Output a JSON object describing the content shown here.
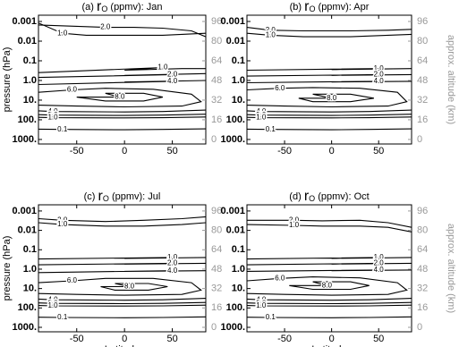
{
  "chart_data": [
    {
      "type": "contour",
      "title_prefix": "(a)",
      "title_symbol": "r",
      "title_subscript": "O",
      "title_units": "(ppmv):",
      "title_month": "Jan",
      "ylabel": "pressure (hPa)",
      "xlim": [
        -90,
        85
      ],
      "xticks": [
        -50,
        0,
        50
      ],
      "ylim": [
        1700,
        0.00048
      ],
      "log_y": true,
      "yticks": [
        0.001,
        0.01,
        0.1,
        {
          "value": 1,
          "label": "1.0"
        },
        {
          "value": 10,
          "label": "10."
        },
        {
          "value": 100,
          "label": "100."
        },
        {
          "value": 1000,
          "label": "1000."
        }
      ],
      "y2lim": [
        -3.7,
        101.1
      ],
      "y2ticks": [
        0,
        16,
        32,
        48,
        64,
        80,
        96
      ],
      "y2color": "#999999",
      "color": "#000000",
      "contours": [
        {
          "label": "1.0",
          "x": [
            -90,
            -65,
            -40,
            0,
            40,
            85
          ],
          "y": [
            0.0012,
            0.004,
            0.005,
            0.005,
            0.005,
            0.004
          ]
        },
        {
          "label": "2.0",
          "x": [
            -90,
            -20,
            10,
            40,
            70,
            85
          ],
          "y": [
            0.0015,
            0.002,
            0.002,
            0.0022,
            0.003,
            0.006
          ]
        },
        {
          "label": "1.0",
          "x": [
            -90,
            40,
            0,
            60,
            85
          ],
          "y": [
            0.4,
            0.22,
            0.3,
            0.25,
            0.25
          ]
        },
        {
          "label": "2.0",
          "x": [
            -90,
            50,
            0,
            85
          ],
          "y": [
            0.7,
            0.5,
            0.55,
            0.45
          ]
        },
        {
          "label": "4.0",
          "x": [
            -90,
            50,
            0,
            85
          ],
          "y": [
            1.6,
            1.1,
            1.2,
            1.0
          ]
        },
        {
          "label": "6.0",
          "x": [
            -90,
            -55,
            -20,
            30,
            70,
            80,
            60,
            0,
            -50,
            -90
          ],
          "y": [
            4,
            3,
            2.5,
            2.8,
            5,
            12,
            20,
            22,
            20,
            18
          ]
        },
        {
          "label": "8.0",
          "x": [
            -50,
            -5,
            -20,
            20,
            40,
            20,
            -20,
            -50
          ],
          "y": [
            7,
            7,
            4.5,
            4.5,
            7,
            11,
            11,
            7
          ]
        },
        {
          "label": "4.0",
          "x": [
            -90,
            -75,
            0,
            40,
            85
          ],
          "y": [
            35,
            38,
            40,
            38,
            32
          ]
        },
        {
          "label": "2.0",
          "x": [
            -90,
            -75,
            0,
            40,
            85
          ],
          "y": [
            55,
            58,
            60,
            58,
            52
          ]
        },
        {
          "label": "1.0",
          "x": [
            -90,
            -75,
            0,
            40,
            85
          ],
          "y": [
            75,
            78,
            80,
            78,
            72
          ]
        },
        {
          "label": "0.1",
          "x": [
            -90,
            -65,
            0,
            40,
            85
          ],
          "y": [
            300,
            310,
            320,
            310,
            290
          ]
        }
      ]
    },
    {
      "type": "contour",
      "title_prefix": "(b)",
      "title_symbol": "r",
      "title_subscript": "O",
      "title_units": "(ppmv):",
      "title_month": "Apr",
      "y2label": "approx. altitude (km)",
      "xlim": [
        -90,
        85
      ],
      "xticks": [
        -50,
        0,
        50
      ],
      "ylim": [
        1700,
        0.00048
      ],
      "log_y": true,
      "yticks": [
        0.001,
        0.01,
        0.1,
        {
          "value": 1,
          "label": "1.0"
        },
        {
          "value": 10,
          "label": "10."
        },
        {
          "value": 100,
          "label": "100."
        },
        {
          "value": 1000,
          "label": "1000."
        }
      ],
      "y2lim": [
        -3.7,
        101.1
      ],
      "y2ticks": [
        0,
        16,
        32,
        48,
        64,
        80,
        96
      ],
      "y2color": "#999999",
      "color": "#000000",
      "contours": [
        {
          "label": "2.0",
          "x": [
            -90,
            -65,
            -30,
            20,
            60,
            85
          ],
          "y": [
            0.002,
            0.0028,
            0.003,
            0.003,
            0.0028,
            0.0025
          ]
        },
        {
          "label": "1.0",
          "x": [
            -90,
            -65,
            -30,
            20,
            60,
            85
          ],
          "y": [
            0.004,
            0.005,
            0.006,
            0.006,
            0.005,
            0.0045
          ]
        },
        {
          "label": "1.0",
          "x": [
            -90,
            50,
            0,
            85
          ],
          "y": [
            0.3,
            0.25,
            0.28,
            0.25
          ]
        },
        {
          "label": "2.0",
          "x": [
            -90,
            50,
            0,
            85
          ],
          "y": [
            0.6,
            0.5,
            0.55,
            0.5
          ]
        },
        {
          "label": "4.0",
          "x": [
            -90,
            50,
            0,
            85
          ],
          "y": [
            1.3,
            1.1,
            1.2,
            1.1
          ]
        },
        {
          "label": "6.0",
          "x": [
            -90,
            -55,
            -20,
            30,
            70,
            80,
            60,
            0,
            -50,
            -90
          ],
          "y": [
            3,
            2.5,
            2.3,
            2.5,
            4,
            12,
            20,
            22,
            20,
            18
          ]
        },
        {
          "label": "8.0",
          "x": [
            -35,
            0,
            -20,
            20,
            45,
            20,
            -20,
            -35
          ],
          "y": [
            8,
            8,
            5,
            5,
            8,
            12,
            12,
            8
          ]
        },
        {
          "label": "4.0",
          "x": [
            -90,
            -75,
            0,
            40,
            85
          ],
          "y": [
            35,
            38,
            40,
            38,
            32
          ]
        },
        {
          "label": "2.0",
          "x": [
            -90,
            -75,
            0,
            40,
            85
          ],
          "y": [
            55,
            58,
            60,
            58,
            52
          ]
        },
        {
          "label": "1.0",
          "x": [
            -90,
            -75,
            0,
            40,
            85
          ],
          "y": [
            75,
            78,
            80,
            78,
            72
          ]
        },
        {
          "label": "0.1",
          "x": [
            -90,
            -65,
            0,
            40,
            85
          ],
          "y": [
            300,
            310,
            320,
            310,
            290
          ]
        }
      ]
    },
    {
      "type": "contour",
      "title_prefix": "(c)",
      "title_symbol": "r",
      "title_subscript": "O",
      "title_units": "(ppmv):",
      "title_month": "Jul",
      "ylabel": "pressure (hPa)",
      "xlabel": "Latitude",
      "xlim": [
        -90,
        85
      ],
      "xticks": [
        -50,
        0,
        50
      ],
      "ylim": [
        1700,
        0.00048
      ],
      "log_y": true,
      "yticks": [
        0.001,
        0.01,
        0.1,
        {
          "value": 1,
          "label": "1.0"
        },
        {
          "value": 10,
          "label": "10."
        },
        {
          "value": 100,
          "label": "100."
        },
        {
          "value": 1000,
          "label": "1000."
        }
      ],
      "y2lim": [
        -3.7,
        101.1
      ],
      "y2ticks": [
        0,
        16,
        32,
        48,
        64,
        80,
        96
      ],
      "y2color": "#999999",
      "color": "#000000",
      "contours": [
        {
          "label": "2.0",
          "x": [
            -90,
            -65,
            -20,
            20,
            60,
            85
          ],
          "y": [
            0.0025,
            0.003,
            0.0035,
            0.003,
            0.0025,
            0.002
          ]
        },
        {
          "label": "1.0",
          "x": [
            -90,
            -65,
            -20,
            20,
            60,
            85
          ],
          "y": [
            0.004,
            0.005,
            0.006,
            0.006,
            0.005,
            0.004
          ]
        },
        {
          "label": "1.0",
          "x": [
            -90,
            50,
            0,
            85
          ],
          "y": [
            0.3,
            0.25,
            0.28,
            0.25
          ]
        },
        {
          "label": "2.0",
          "x": [
            -90,
            50,
            0,
            85
          ],
          "y": [
            0.6,
            0.5,
            0.55,
            0.5
          ]
        },
        {
          "label": "4.0",
          "x": [
            -90,
            50,
            0,
            85
          ],
          "y": [
            1.5,
            1.2,
            1.3,
            1.2
          ]
        },
        {
          "label": "6.0",
          "x": [
            -90,
            -55,
            -20,
            30,
            70,
            80,
            60,
            0,
            -50,
            -90
          ],
          "y": [
            5,
            4,
            3,
            3,
            5,
            12,
            20,
            22,
            20,
            18
          ]
        },
        {
          "label": "8.0",
          "x": [
            -25,
            5,
            -10,
            25,
            45,
            25,
            -10,
            -25
          ],
          "y": [
            8,
            8,
            5.5,
            5.5,
            8,
            12,
            12,
            8
          ]
        },
        {
          "label": "4.0",
          "x": [
            -90,
            -75,
            0,
            40,
            85
          ],
          "y": [
            35,
            38,
            40,
            38,
            32
          ]
        },
        {
          "label": "2.0",
          "x": [
            -90,
            -75,
            0,
            40,
            85
          ],
          "y": [
            55,
            58,
            60,
            58,
            52
          ]
        },
        {
          "label": "1.0",
          "x": [
            -90,
            -75,
            0,
            40,
            85
          ],
          "y": [
            75,
            78,
            80,
            78,
            72
          ]
        },
        {
          "label": "0.1",
          "x": [
            -90,
            -65,
            0,
            40,
            85
          ],
          "y": [
            300,
            310,
            320,
            310,
            290
          ]
        }
      ]
    },
    {
      "type": "contour",
      "title_prefix": "(d)",
      "title_symbol": "r",
      "title_subscript": "O",
      "title_units": "(ppmv):",
      "title_month": "Oct",
      "y2label": "approx. altitude (km)",
      "xlabel": "Latitude",
      "xlim": [
        -90,
        85
      ],
      "xticks": [
        -50,
        0,
        50
      ],
      "ylim": [
        1700,
        0.00048
      ],
      "log_y": true,
      "yticks": [
        0.001,
        0.01,
        0.1,
        {
          "value": 1,
          "label": "1.0"
        },
        {
          "value": 10,
          "label": "10."
        },
        {
          "value": 100,
          "label": "100."
        },
        {
          "value": 1000,
          "label": "1000."
        }
      ],
      "y2lim": [
        -3.7,
        101.1
      ],
      "y2ticks": [
        0,
        16,
        32,
        48,
        64,
        80,
        96
      ],
      "y2color": "#999999",
      "color": "#000000",
      "contours": [
        {
          "label": "2.0",
          "x": [
            -90,
            -40,
            -10,
            30,
            60,
            85
          ],
          "y": [
            0.003,
            0.003,
            0.0032,
            0.003,
            0.004,
            0.007
          ]
        },
        {
          "label": "1.0",
          "x": [
            -90,
            -40,
            -10,
            30,
            60,
            85
          ],
          "y": [
            0.005,
            0.0055,
            0.006,
            0.006,
            0.007,
            0.012
          ]
        },
        {
          "label": "1.0",
          "x": [
            -90,
            50,
            0,
            85
          ],
          "y": [
            0.3,
            0.25,
            0.28,
            0.25
          ]
        },
        {
          "label": "2.0",
          "x": [
            -90,
            50,
            0,
            85
          ],
          "y": [
            0.6,
            0.5,
            0.55,
            0.5
          ]
        },
        {
          "label": "4.0",
          "x": [
            -90,
            50,
            0,
            85
          ],
          "y": [
            1.3,
            1.1,
            1.2,
            1.1
          ]
        },
        {
          "label": "6.0",
          "x": [
            -90,
            -55,
            -20,
            30,
            70,
            80,
            60,
            0,
            -50,
            -90
          ],
          "y": [
            4,
            3,
            2.5,
            2.8,
            5,
            12,
            20,
            22,
            20,
            18
          ]
        },
        {
          "label": "8.0",
          "x": [
            -45,
            -5,
            -20,
            20,
            40,
            20,
            -20,
            -45
          ],
          "y": [
            7,
            7,
            4.5,
            4.5,
            7,
            11,
            11,
            7
          ]
        },
        {
          "label": "4.0",
          "x": [
            -90,
            -75,
            0,
            40,
            85
          ],
          "y": [
            35,
            38,
            40,
            38,
            32
          ]
        },
        {
          "label": "2.0",
          "x": [
            -90,
            -75,
            0,
            40,
            85
          ],
          "y": [
            55,
            58,
            60,
            58,
            52
          ]
        },
        {
          "label": "1.0",
          "x": [
            -90,
            -75,
            0,
            40,
            85
          ],
          "y": [
            75,
            78,
            80,
            78,
            72
          ]
        },
        {
          "label": "0.1",
          "x": [
            -90,
            -65,
            0,
            40,
            85
          ],
          "y": [
            300,
            310,
            320,
            310,
            290
          ]
        }
      ]
    }
  ]
}
